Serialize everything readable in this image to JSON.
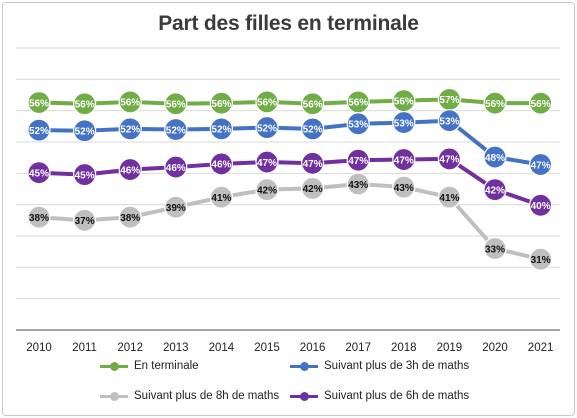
{
  "chart_data": {
    "type": "line",
    "title": "Part des filles en terminale",
    "categories": [
      "2010",
      "2011",
      "2012",
      "2013",
      "2014",
      "2015",
      "2016",
      "2017",
      "2018",
      "2019",
      "2020",
      "2021"
    ],
    "ylim": [
      20,
      65
    ],
    "grid": true,
    "legend_position": "bottom",
    "series": [
      {
        "name": "En terminale",
        "color": "#70ad47",
        "values": [
          56,
          56,
          56,
          56,
          56,
          56,
          56,
          56,
          56,
          57,
          56,
          56
        ],
        "labels": [
          "56%",
          "56%",
          "56%",
          "56%",
          "56%",
          "56%",
          "56%",
          "56%",
          "56%",
          "57%",
          "56%",
          "56%"
        ],
        "positions": [
          56.3,
          56.1,
          56.4,
          56.1,
          56.2,
          56.4,
          56.1,
          56.4,
          56.6,
          56.8,
          56.2,
          56.2
        ]
      },
      {
        "name": "Suivant plus de 3h de maths",
        "color": "#4472c4",
        "values": [
          52,
          52,
          52,
          52,
          52,
          52,
          52,
          53,
          53,
          53,
          48,
          47
        ],
        "labels": [
          "52%",
          "52%",
          "52%",
          "52%",
          "52%",
          "52%",
          "52%",
          "53%",
          "53%",
          "53%",
          "48%",
          "47%"
        ],
        "positions": [
          51.9,
          51.8,
          52.1,
          52.0,
          52.1,
          52.3,
          52.1,
          52.9,
          53.1,
          53.4,
          47.6,
          46.4
        ]
      },
      {
        "name": "Suivant plus de 8h de maths",
        "color": "#bfbfbf",
        "values": [
          38,
          37,
          38,
          39,
          41,
          42,
          42,
          43,
          43,
          41,
          33,
          31
        ],
        "labels": [
          "38%",
          "37%",
          "38%",
          "39%",
          "41%",
          "42%",
          "42%",
          "43%",
          "43%",
          "41%",
          "33%",
          "31%"
        ],
        "positions": [
          38.0,
          37.5,
          38.0,
          39.6,
          41.2,
          42.4,
          42.6,
          43.3,
          42.8,
          41.2,
          33.0,
          31.3
        ]
      },
      {
        "name": "Suivant plus de 6h de maths",
        "color": "#7030a0",
        "values": [
          45,
          45,
          46,
          46,
          46,
          47,
          47,
          47,
          47,
          47,
          42,
          40
        ],
        "labels": [
          "45%",
          "45%",
          "46%",
          "46%",
          "46%",
          "47%",
          "47%",
          "47%",
          "47%",
          "47%",
          "42%",
          "40%"
        ],
        "positions": [
          45.1,
          44.8,
          45.6,
          46.0,
          46.5,
          46.8,
          46.6,
          47.1,
          47.2,
          47.3,
          42.4,
          39.9
        ]
      }
    ],
    "legend_order": [
      0,
      1,
      2,
      3
    ]
  }
}
